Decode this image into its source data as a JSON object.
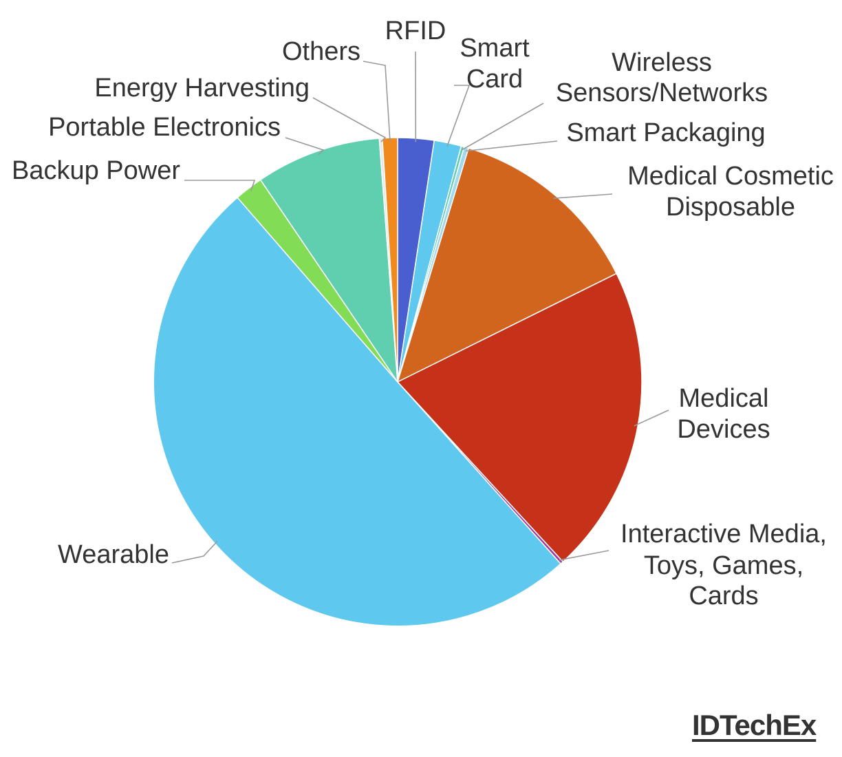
{
  "chart_data": {
    "type": "pie",
    "title": "",
    "start_angle": "12 o'clock, clockwise",
    "slices": [
      {
        "label": "RFID",
        "value": 2.4,
        "color": "#4a5fcf"
      },
      {
        "label": "Smart Card",
        "value": 1.8,
        "color": "#5ec8ee"
      },
      {
        "label": "Wireless Sensors/Networks",
        "value": 0.2,
        "color": "#5fcfb0"
      },
      {
        "label": "Smart Packaging",
        "value": 0.3,
        "color": "#9fd9f0"
      },
      {
        "label": "Medical Cosmetic Disposable",
        "value": 13.0,
        "color": "#d2651d"
      },
      {
        "label": "Medical Devices",
        "value": 20.5,
        "color": "#c63219"
      },
      {
        "label": "Interactive Media, Toys, Games, Cards",
        "value": 0.2,
        "color": "#a33a9c"
      },
      {
        "label": "Wearable",
        "value": 50.3,
        "color": "#5ec8ee"
      },
      {
        "label": "Backup Power",
        "value": 1.9,
        "color": "#82dc55"
      },
      {
        "label": "Portable Electronics",
        "value": 8.3,
        "color": "#5fcfb0"
      },
      {
        "label": "Energy Harvesting",
        "value": 0.2,
        "color": "#e8e8e8"
      },
      {
        "label": "Others",
        "value": 1.0,
        "color": "#f08a1e"
      }
    ]
  },
  "brand": "IDTechEx"
}
